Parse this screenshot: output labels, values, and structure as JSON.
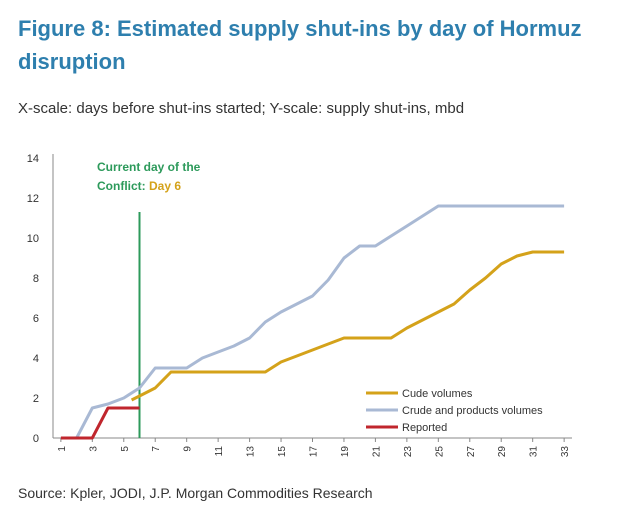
{
  "title": "Figure 8: Estimated supply shut-ins by day of Hormuz disruption",
  "subtitle": "X-scale: days before shut-ins started; Y-scale: supply shut-ins, mbd",
  "source": "Source: Kpler, JODI, J.P. Morgan Commodities Research",
  "colors": {
    "title": "#2e7fae",
    "crude": "#d4a21a",
    "crude_products": "#a9b9d4",
    "reported": "#c0262d",
    "current_day_line": "#2d9a5b",
    "current_day_label": "#2d9a5b",
    "day_highlight": "#d4a21a",
    "axis": "#888888",
    "text": "#333333"
  },
  "chart_data": {
    "type": "line",
    "x_tick_labels": [
      "1",
      "3",
      "5",
      "7",
      "9",
      "11",
      "13",
      "15",
      "17",
      "19",
      "21",
      "23",
      "25",
      "27",
      "29",
      "31",
      "33"
    ],
    "y_tick_labels": [
      "0",
      "2",
      "4",
      "6",
      "8",
      "10",
      "12",
      "14"
    ],
    "xlim": [
      0.5,
      33.5
    ],
    "ylim": [
      0,
      14
    ],
    "grid": false,
    "legend_position": "lower-right",
    "annotation": {
      "text_line1": "Current day of the",
      "text_line2_prefix": "Conflict: ",
      "text_line2_highlight": "Day 6",
      "x": 6
    },
    "series": [
      {
        "name": "Cude volumes",
        "color_key": "crude",
        "points": [
          [
            5.5,
            1.9
          ],
          [
            6,
            2.1
          ],
          [
            7,
            2.5
          ],
          [
            8,
            3.3
          ],
          [
            9,
            3.3
          ],
          [
            10,
            3.3
          ],
          [
            11,
            3.3
          ],
          [
            12,
            3.3
          ],
          [
            13,
            3.3
          ],
          [
            14,
            3.3
          ],
          [
            15,
            3.8
          ],
          [
            16,
            4.1
          ],
          [
            17,
            4.4
          ],
          [
            18,
            4.7
          ],
          [
            19,
            5.0
          ],
          [
            20,
            5.0
          ],
          [
            21,
            5.0
          ],
          [
            22,
            5.0
          ],
          [
            23,
            5.5
          ],
          [
            24,
            5.9
          ],
          [
            25,
            6.3
          ],
          [
            26,
            6.7
          ],
          [
            27,
            7.4
          ],
          [
            28,
            8.0
          ],
          [
            29,
            8.7
          ],
          [
            30,
            9.1
          ],
          [
            31,
            9.3
          ],
          [
            32,
            9.3
          ],
          [
            33,
            9.3
          ]
        ]
      },
      {
        "name": "Crude and products volumes",
        "color_key": "crude_products",
        "points": [
          [
            2,
            0
          ],
          [
            3,
            1.5
          ],
          [
            4,
            1.7
          ],
          [
            5,
            2.0
          ],
          [
            6,
            2.5
          ],
          [
            7,
            3.5
          ],
          [
            8,
            3.5
          ],
          [
            9,
            3.5
          ],
          [
            10,
            4.0
          ],
          [
            11,
            4.3
          ],
          [
            12,
            4.6
          ],
          [
            13,
            5.0
          ],
          [
            14,
            5.8
          ],
          [
            15,
            6.3
          ],
          [
            16,
            6.7
          ],
          [
            17,
            7.1
          ],
          [
            18,
            7.9
          ],
          [
            19,
            9.0
          ],
          [
            20,
            9.6
          ],
          [
            21,
            9.6
          ],
          [
            22,
            10.1
          ],
          [
            23,
            10.6
          ],
          [
            24,
            11.1
          ],
          [
            25,
            11.6
          ],
          [
            26,
            11.6
          ],
          [
            27,
            11.6
          ],
          [
            28,
            11.6
          ],
          [
            29,
            11.6
          ],
          [
            30,
            11.6
          ],
          [
            31,
            11.6
          ],
          [
            32,
            11.6
          ],
          [
            33,
            11.6
          ]
        ]
      },
      {
        "name": "Reported",
        "color_key": "reported",
        "points": [
          [
            1,
            0
          ],
          [
            2,
            0
          ],
          [
            3,
            0
          ],
          [
            4,
            1.5
          ],
          [
            5,
            1.5
          ],
          [
            6,
            1.5
          ]
        ]
      }
    ]
  }
}
